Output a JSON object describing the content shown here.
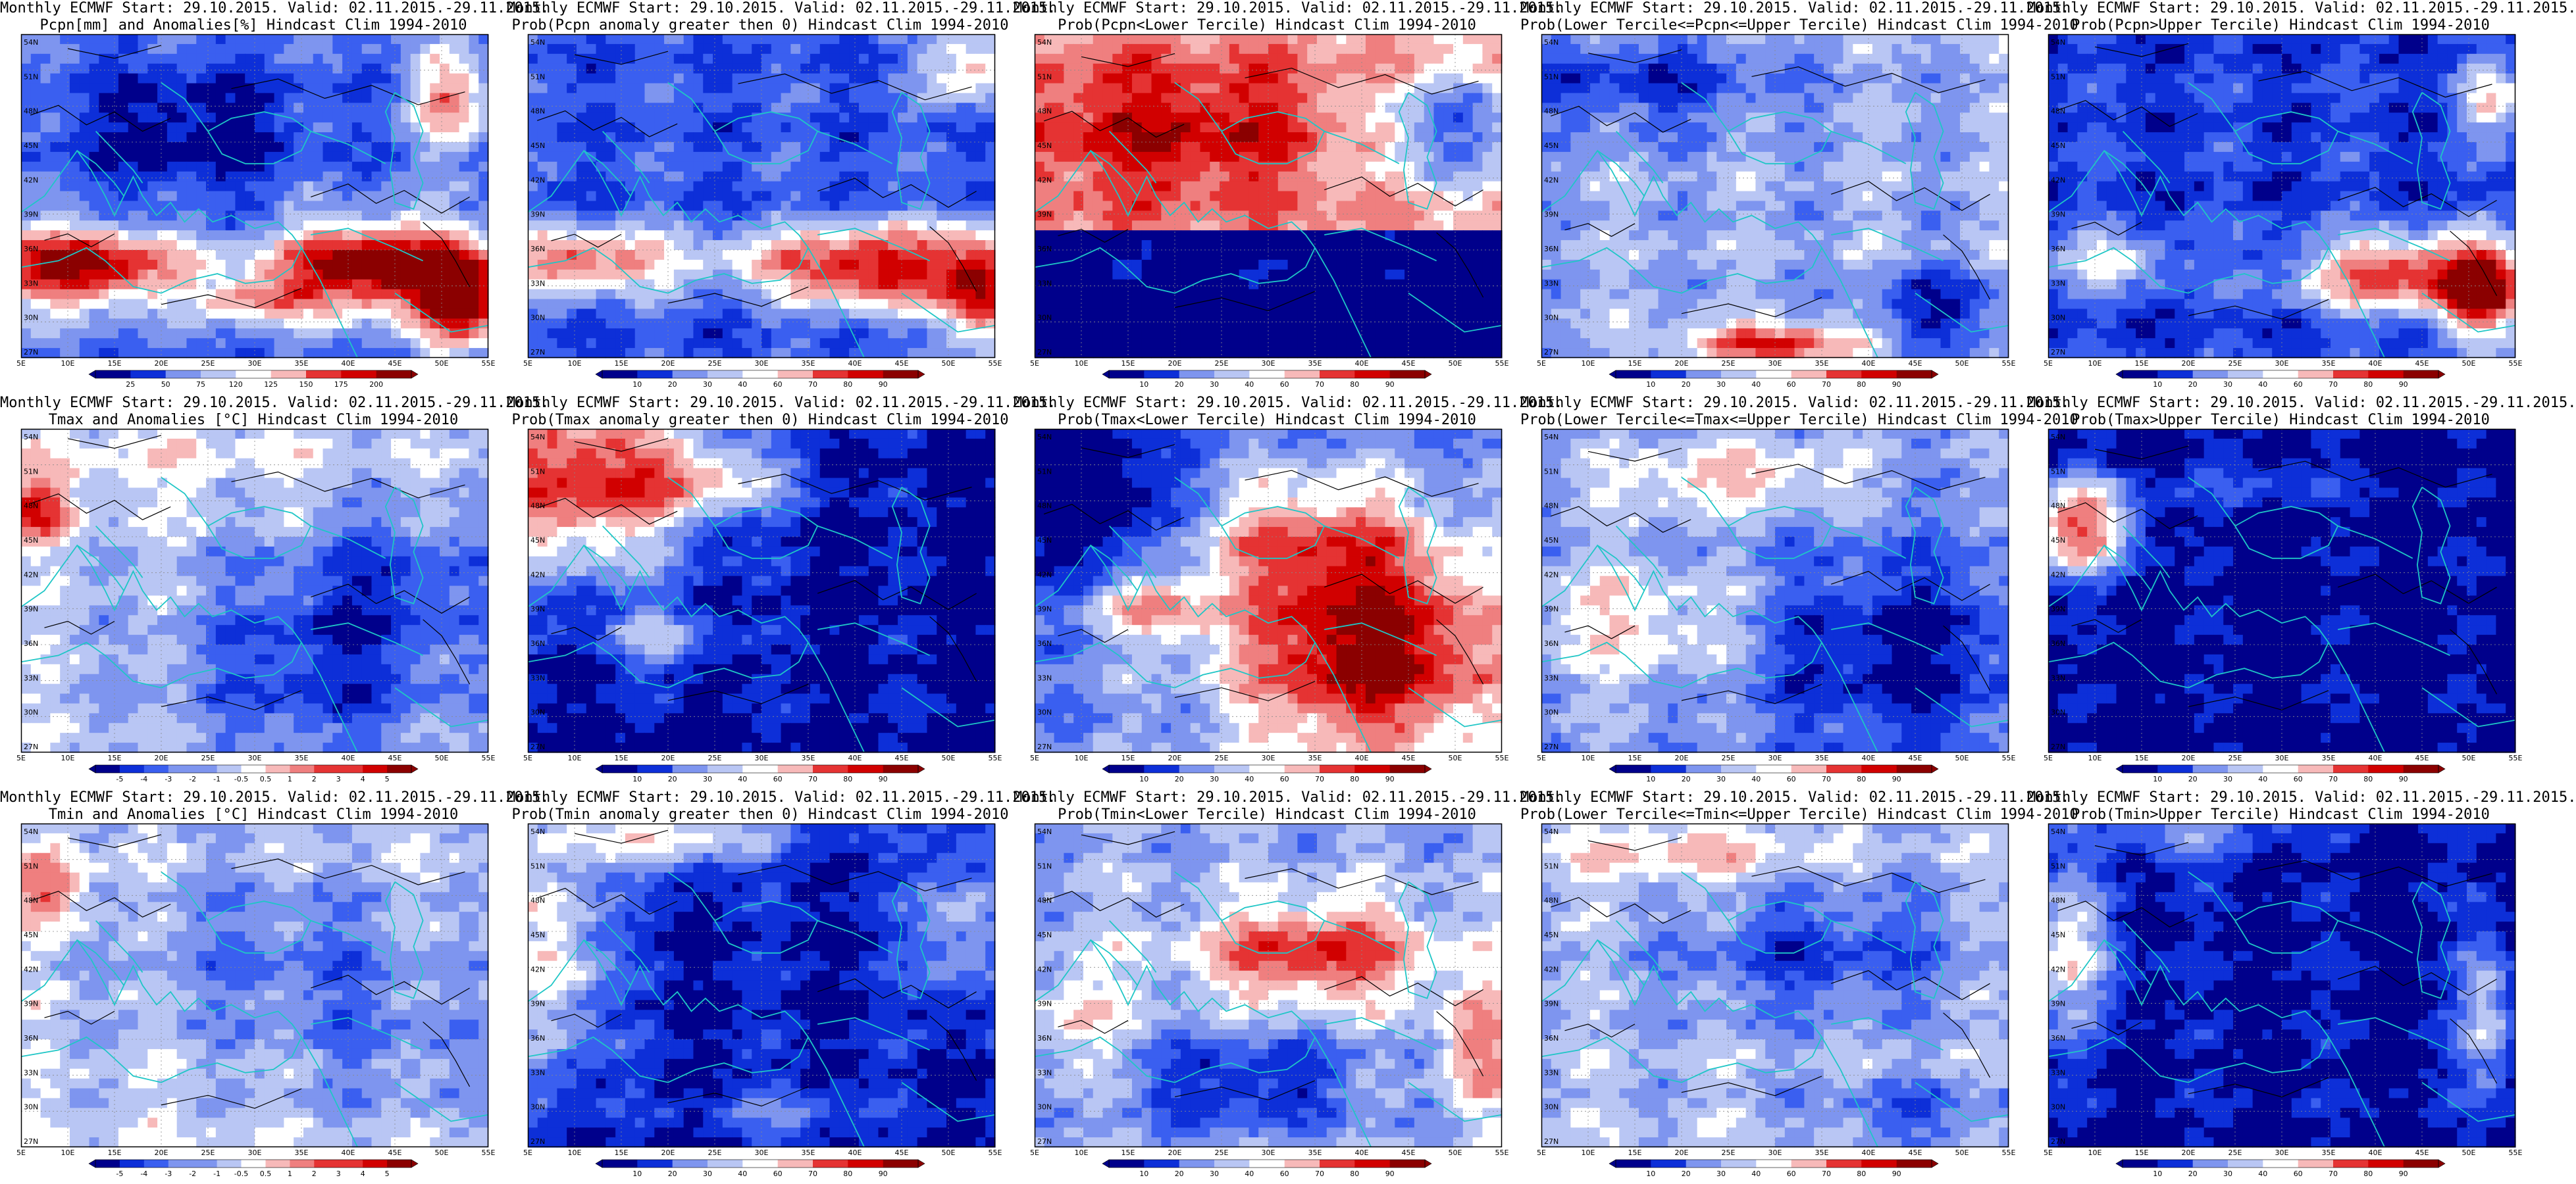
{
  "colors": {
    "coast": "#1fc6c6",
    "contour": "#000000",
    "grid": "#8a8a8a",
    "scale": [
      "#00008b",
      "#0d2fd8",
      "#3a5ff0",
      "#7e95ef",
      "#b9c6f4",
      "#ffffff",
      "#f7b9b9",
      "#ef7f7f",
      "#e53333",
      "#d10000",
      "#8b0000"
    ]
  },
  "axes": {
    "lat_labels": [
      "54N",
      "51N",
      "48N",
      "45N",
      "42N",
      "39N",
      "36N",
      "33N",
      "30N",
      "27N"
    ],
    "lon_labels": [
      "5E",
      "10E",
      "15E",
      "20E",
      "25E",
      "30E",
      "35E",
      "40E",
      "45E",
      "50E",
      "55E"
    ]
  },
  "colorbars": {
    "pcpn_anom": [
      "25",
      "50",
      "75",
      "120",
      "125",
      "150",
      "175",
      "200"
    ],
    "prob": [
      "10",
      "20",
      "30",
      "40",
      "60",
      "70",
      "80",
      "90"
    ],
    "temp_anom": [
      "-5",
      "-4",
      "-3",
      "-2",
      "-1",
      "-0.5",
      "0.5",
      "1",
      "2",
      "3",
      "4",
      "5"
    ]
  },
  "panels": [
    {
      "title1": "Monthly ECMWF Start: 29.10.2015. Valid: 02.11.2015.-29.11.2015.",
      "title2": "Pcpn[mm] and Anomalies[%] Hindcast Clim 1994-2010",
      "colorbar": "pcpn_anom",
      "pattern": "pcpn_anom"
    },
    {
      "title1": "Monthly ECMWF Start: 29.10.2015. Valid: 02.11.2015.-29.11.2015.",
      "title2": "Prob(Pcpn anomaly greater then 0) Hindcast Clim 1994-2010",
      "colorbar": "prob",
      "pattern": "pcpn_gt0"
    },
    {
      "title1": "Monthly ECMWF Start: 29.10.2015. Valid: 02.11.2015.-29.11.2015.",
      "title2": "Prob(Pcpn<Lower Tercile) Hindcast Clim 1994-2010",
      "colorbar": "prob",
      "pattern": "pcpn_lower"
    },
    {
      "title1": "Monthly ECMWF Start: 29.10.2015. Valid: 02.11.2015.-29.11.2015.",
      "title2": "Prob(Lower Tercile<=Pcpn<=Upper Tercile) Hindcast Clim 1994-2010",
      "colorbar": "prob",
      "pattern": "pcpn_mid"
    },
    {
      "title1": "Monthly ECMWF Start: 29.10.2015. Valid: 02.11.2015.-29.11.2015.",
      "title2": "Prob(Pcpn>Upper Tercile) Hindcast Clim 1994-2010",
      "colorbar": "prob",
      "pattern": "pcpn_upper"
    },
    {
      "title1": "Monthly ECMWF Start: 29.10.2015. Valid: 02.11.2015.-29.11.2015.",
      "title2": "Tmax and Anomalies [°C] Hindcast Clim 1994-2010",
      "colorbar": "temp_anom",
      "pattern": "tmax_anom"
    },
    {
      "title1": "Monthly ECMWF Start: 29.10.2015. Valid: 02.11.2015.-29.11.2015.",
      "title2": "Prob(Tmax anomaly greater then 0) Hindcast Clim 1994-2010",
      "colorbar": "prob",
      "pattern": "tmax_gt0"
    },
    {
      "title1": "Monthly ECMWF Start: 29.10.2015. Valid: 02.11.2015.-29.11.2015.",
      "title2": "Prob(Tmax<Lower Tercile) Hindcast Clim 1994-2010",
      "colorbar": "prob",
      "pattern": "tmax_lower"
    },
    {
      "title1": "Monthly ECMWF Start: 29.10.2015. Valid: 02.11.2015.-29.11.2015.",
      "title2": "Prob(Lower Tercile<=Tmax<=Upper Tercile) Hindcast Clim 1994-2010",
      "colorbar": "prob",
      "pattern": "tmax_mid"
    },
    {
      "title1": "Monthly ECMWF Start: 29.10.2015. Valid: 02.11.2015.-29.11.2015.",
      "title2": "Prob(Tmax>Upper Tercile) Hindcast Clim 1994-2010",
      "colorbar": "prob",
      "pattern": "tmax_upper"
    },
    {
      "title1": "Monthly ECMWF Start: 29.10.2015. Valid: 02.11.2015.-29.11.2015.",
      "title2": "Tmin and Anomalies [°C] Hindcast Clim 1994-2010",
      "colorbar": "temp_anom",
      "pattern": "tmin_anom"
    },
    {
      "title1": "Monthly ECMWF Start: 29.10.2015. Valid: 02.11.2015.-29.11.2015.",
      "title2": "Prob(Tmin anomaly greater then 0) Hindcast Clim 1994-2010",
      "colorbar": "prob",
      "pattern": "tmin_gt0"
    },
    {
      "title1": "Monthly ECMWF Start: 29.10.2015. Valid: 02.11.2015.-29.11.2015.",
      "title2": "Prob(Tmin<Lower Tercile) Hindcast Clim 1994-2010",
      "colorbar": "prob",
      "pattern": "tmin_lower"
    },
    {
      "title1": "Monthly ECMWF Start: 29.10.2015. Valid: 02.11.2015.-29.11.2015.",
      "title2": "Prob(Lower Tercile<=Tmin<=Upper Tercile) Hindcast Clim 1994-2010",
      "colorbar": "prob",
      "pattern": "tmin_mid"
    },
    {
      "title1": "Monthly ECMWF Start: 29.10.2015. Valid: 02.11.2015.-29.11.2015.",
      "title2": "Prob(Tmin>Upper Tercile) Hindcast Clim 1994-2010",
      "colorbar": "prob",
      "pattern": "tmin_upper"
    }
  ]
}
